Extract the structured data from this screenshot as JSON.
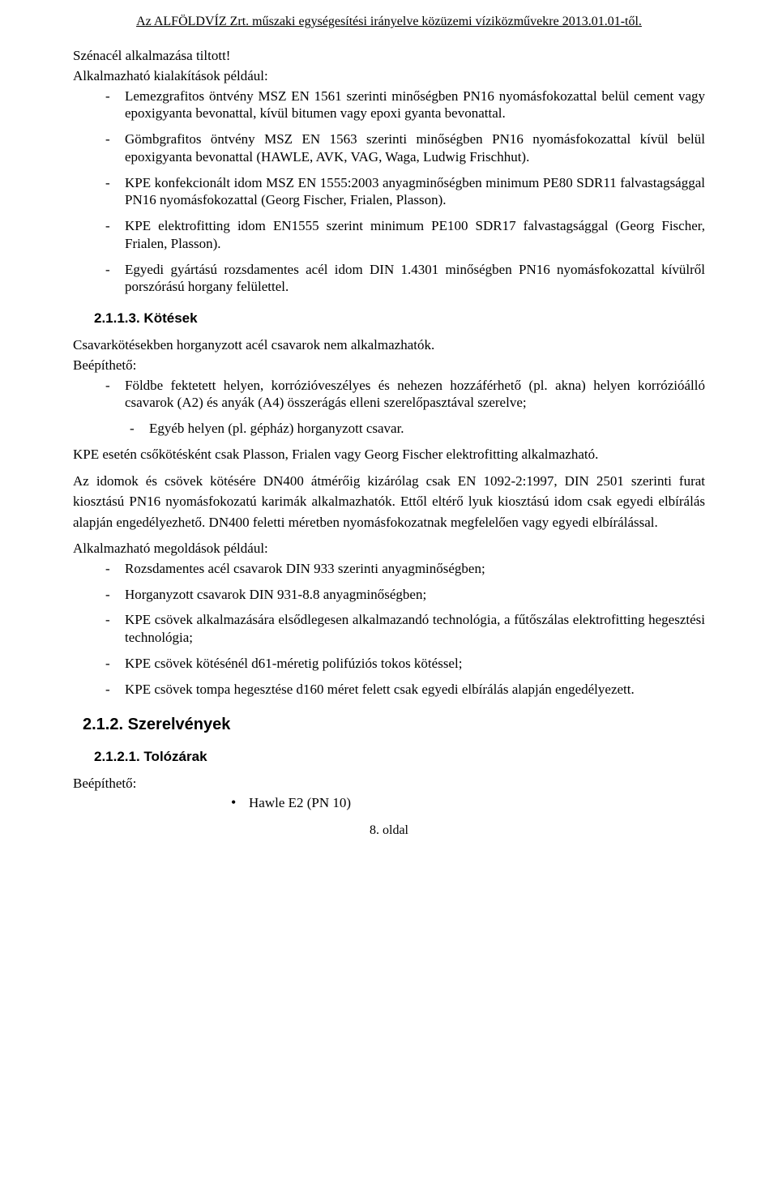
{
  "header": {
    "text": "Az ALFÖLDVÍZ Zrt. műszaki egységesítési irányelve közüzemi víziközművekre 2013.01.01-től."
  },
  "body": {
    "intro1": "Szénacél alkalmazása tiltott!",
    "intro2": "Alkalmazható kialakítások például:",
    "list1": [
      "Lemezgrafitos öntvény MSZ EN 1561 szerinti minőségben PN16 nyomásfokozattal belül cement vagy epoxigyanta bevonattal, kívül bitumen vagy epoxi gyanta bevonattal.",
      "Gömbgrafitos öntvény MSZ EN 1563 szerinti minőségben PN16 nyomásfokozattal kívül belül epoxigyanta bevonattal (HAWLE, AVK, VAG, Waga, Ludwig Frischhut).",
      "KPE konfekcionált idom MSZ EN 1555:2003 anyagminőségben minimum PE80 SDR11 falvastagsággal  PN16 nyomásfokozattal (Georg Fischer, Frialen, Plasson).",
      "KPE elektrofitting idom  EN1555 szerint minimum PE100 SDR17 falvastagsággal (Georg Fischer, Frialen, Plasson).",
      "Egyedi gyártású rozsdamentes acél idom DIN 1.4301 minőségben PN16 nyomásfokozattal kívülről porszórású horgany felülettel."
    ],
    "heading_2_1_1_3": "2.1.1.3.   Kötések",
    "para1": "Csavarkötésekben horganyzott acél csavarok nem alkalmazhatók.",
    "para2": "Beépíthető:",
    "list2": [
      "Földbe fektetett helyen, korrózióveszélyes és nehezen hozzáférhető (pl. akna) helyen korrózióálló csavarok (A2) és anyák (A4) összerágás elleni szerelőpasztával szerelve;"
    ],
    "list2_nested": [
      "Egyéb helyen (pl. gépház) horganyzott csavar."
    ],
    "para3": "KPE esetén csőkötésként csak Plasson, Frialen vagy Georg Fischer elektrofitting alkalmazható.",
    "para4": "Az idomok és csövek kötésére DN400 átmérőig kizárólag csak EN 1092-2:1997, DIN 2501 szerinti furat kiosztású PN16 nyomásfokozatú karimák alkalmazhatók. Ettől eltérő lyuk kiosztású idom csak egyedi elbírálás alapján engedélyezhető. DN400 feletti méretben nyomásfokozatnak megfelelően vagy egyedi elbírálással.",
    "para5": "Alkalmazható megoldások például:",
    "list3": [
      "Rozsdamentes acél csavarok DIN 933  szerinti anyagminőségben;",
      "Horganyzott csavarok DIN 931-8.8 anyagminőségben;",
      "KPE csövek alkalmazására elsődlegesen alkalmazandó technológia, a fűtőszálas elektrofitting hegesztési technológia;",
      "KPE csövek kötésénél d61-méretig polifúziós tokos kötéssel;",
      "KPE csövek tompa hegesztése d160 méret felett csak egyedi elbírálás alapján engedélyezett."
    ],
    "heading_2_1_2": "2.1.2.  Szerelvények",
    "heading_2_1_2_1": "2.1.2.1.   Tolózárak",
    "para6": "Beépíthető:",
    "bullet_list": [
      "Hawle E2 (PN 10)"
    ]
  },
  "footer": {
    "text": "8. oldal"
  }
}
